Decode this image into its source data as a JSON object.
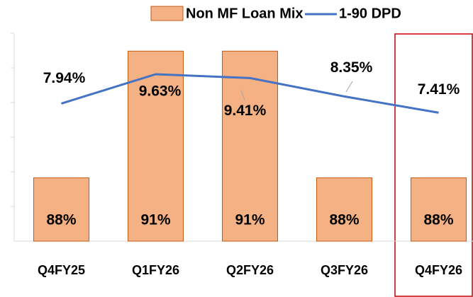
{
  "chart_data": {
    "type": "bar",
    "categories": [
      "Q4FY25",
      "Q1FY26",
      "Q2FY26",
      "Q3FY26",
      "Q4FY26"
    ],
    "series": [
      {
        "name": "Non MF Loan Mix",
        "type": "bar",
        "color": "#f4b183",
        "values": [
          88,
          91,
          91,
          88,
          88
        ],
        "value_labels": [
          "88%",
          "91%",
          "91%",
          "88%",
          "88%"
        ]
      },
      {
        "name": "1-90 DPD",
        "type": "line",
        "axis": "y2",
        "color": "#4472c4",
        "values": [
          7.94,
          9.63,
          9.41,
          8.35,
          7.41
        ],
        "value_labels": [
          "7.94%",
          "9.63%",
          "9.41%",
          "8.35%",
          "7.41%"
        ]
      }
    ],
    "ylim": [
      86.5,
      92
    ],
    "y2lim": [
      0,
      13.4
    ]
  }
}
